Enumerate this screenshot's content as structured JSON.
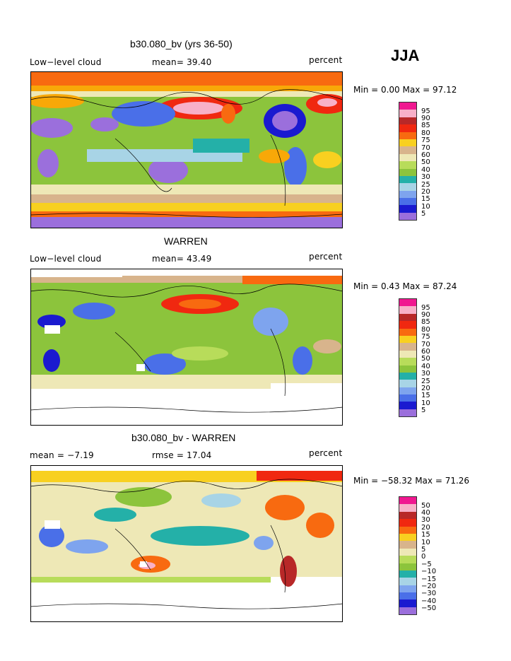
{
  "season": "JJA",
  "palette": [
    "#9b6fdc",
    "#1a1ad0",
    "#4a6fe8",
    "#7ea4ee",
    "#a8d4e6",
    "#24b0a8",
    "#8cc43c",
    "#b8dc5a",
    "#eee8b6",
    "#d8b48c",
    "#f8d020",
    "#f8a808",
    "#f86a10",
    "#f02810",
    "#b82828",
    "#f8b0c8",
    "#f01890"
  ],
  "panels": [
    {
      "id": "model",
      "title": "b30.080_bv (yrs 36-50)",
      "left_label": "Low−level cloud",
      "mid_label": "mean=   39.40",
      "units": "percent",
      "minmax": "Min =    0.00 Max =   97.12",
      "legend_labels": [
        "95",
        "90",
        "85",
        "80",
        "75",
        "70",
        "60",
        "50",
        "40",
        "30",
        "25",
        "20",
        "15",
        "10",
        "5"
      ]
    },
    {
      "id": "obs",
      "title": "WARREN",
      "left_label": "Low−level cloud",
      "mid_label": "mean=   43.49",
      "units": "percent",
      "minmax": "Min =    0.43 Max =   87.24",
      "legend_labels": [
        "95",
        "90",
        "85",
        "80",
        "75",
        "70",
        "60",
        "50",
        "40",
        "30",
        "25",
        "20",
        "15",
        "10",
        "5"
      ]
    },
    {
      "id": "diff",
      "title": "b30.080_bv - WARREN",
      "left_label": "mean =   −7.19",
      "mid_label": "rmse =   17.04",
      "units": "percent",
      "minmax": "Min = −58.32 Max =   71.26",
      "legend_labels": [
        "50",
        "40",
        "30",
        "20",
        "15",
        "10",
        "5",
        "0",
        "−5",
        "−10",
        "−15",
        "−20",
        "−30",
        "−40",
        "−50"
      ]
    }
  ]
}
